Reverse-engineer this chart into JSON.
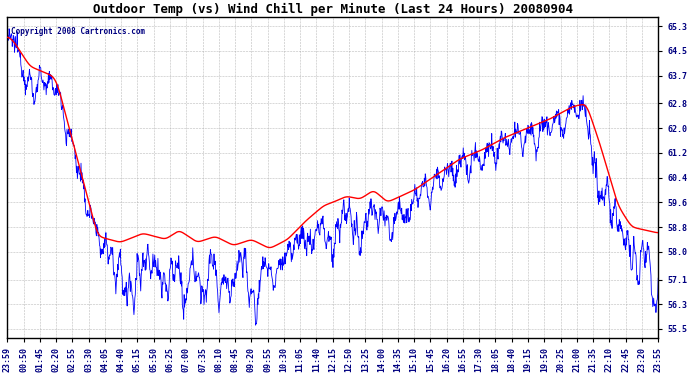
{
  "title": "Outdoor Temp (vs) Wind Chill per Minute (Last 24 Hours) 20080904",
  "copyright": "Copyright 2008 Cartronics.com",
  "figsize": [
    6.9,
    3.75
  ],
  "dpi": 100,
  "bg_color": "#ffffff",
  "plot_bg_color": "#ffffff",
  "blue_color": "#0000ff",
  "red_color": "#ff0000",
  "grid_color": "#aaaaaa",
  "yticks": [
    55.5,
    56.3,
    57.1,
    58.0,
    58.8,
    59.6,
    60.4,
    61.2,
    62.0,
    62.8,
    63.7,
    64.5,
    65.3
  ],
  "ylim": [
    55.2,
    65.6
  ],
  "xtick_labels": [
    "23:59",
    "00:50",
    "01:45",
    "02:20",
    "02:55",
    "03:30",
    "04:05",
    "04:40",
    "05:15",
    "05:50",
    "06:25",
    "07:00",
    "07:35",
    "08:10",
    "08:45",
    "09:20",
    "09:55",
    "10:30",
    "11:05",
    "11:40",
    "12:15",
    "12:50",
    "13:25",
    "14:00",
    "14:35",
    "15:10",
    "15:45",
    "16:20",
    "16:55",
    "17:30",
    "18:05",
    "18:40",
    "19:15",
    "19:50",
    "20:25",
    "21:00",
    "21:35",
    "22:10",
    "22:45",
    "23:20",
    "23:55"
  ],
  "n_points": 1440,
  "title_fontsize": 9,
  "tick_fontsize": 6,
  "copyright_fontsize": 5.5
}
